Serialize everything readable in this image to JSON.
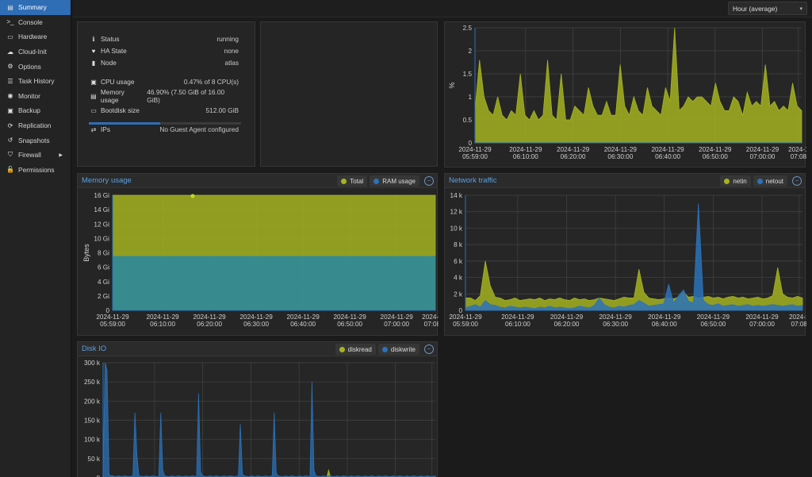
{
  "sidebar": {
    "items": [
      {
        "label": "Summary",
        "icon": "book-icon",
        "glyph": "▤",
        "active": true
      },
      {
        "label": "Console",
        "icon": "terminal-icon",
        "glyph": ">_"
      },
      {
        "label": "Hardware",
        "icon": "monitor-icon",
        "glyph": "▭"
      },
      {
        "label": "Cloud-Init",
        "icon": "cloud-icon",
        "glyph": "☁"
      },
      {
        "label": "Options",
        "icon": "gear-icon",
        "glyph": "⚙"
      },
      {
        "label": "Task History",
        "icon": "list-icon",
        "glyph": "☰"
      },
      {
        "label": "Monitor",
        "icon": "eye-icon",
        "glyph": "◉"
      },
      {
        "label": "Backup",
        "icon": "floppy-icon",
        "glyph": "▣"
      },
      {
        "label": "Replication",
        "icon": "refresh-icon",
        "glyph": "⟳"
      },
      {
        "label": "Snapshots",
        "icon": "history-icon",
        "glyph": "↺"
      },
      {
        "label": "Firewall",
        "icon": "shield-icon",
        "glyph": "⛉",
        "arrow": true
      },
      {
        "label": "Permissions",
        "icon": "unlock-icon",
        "glyph": "🔓"
      }
    ]
  },
  "toolbar": {
    "timeframe": "Hour (average)"
  },
  "status": {
    "rows": [
      {
        "name": "status",
        "icon": "info-icon",
        "glyph": "ℹ",
        "label": "Status",
        "value": "running"
      },
      {
        "name": "ha-state",
        "icon": "heartbeat-icon",
        "glyph": "♥",
        "label": "HA State",
        "value": "none"
      },
      {
        "name": "node",
        "icon": "server-icon",
        "glyph": "▮",
        "label": "Node",
        "value": "atlas"
      },
      {
        "name": "cpu-usage",
        "icon": "cpu-icon",
        "glyph": "▣",
        "label": "CPU usage",
        "value": "0.47% of 8 CPU(s)"
      },
      {
        "name": "memory-usage",
        "icon": "memory-icon",
        "glyph": "▤",
        "label": "Memory usage",
        "value": "46.90% (7.50 GiB of 16.00 GiB)"
      },
      {
        "name": "bootdisk-size",
        "icon": "hdd-icon",
        "glyph": "▭",
        "label": "Bootdisk size",
        "value": "512.00 GiB"
      },
      {
        "name": "ips",
        "icon": "exchange-icon",
        "glyph": "⇄",
        "label": "IPs",
        "value": "No Guest Agent configured"
      }
    ],
    "memory_percent": 46.9
  },
  "colors": {
    "green": "#a5b321",
    "blue": "#2b72b8",
    "teal": "#2e8a9a"
  },
  "x_ticks": [
    "2024-11-29\n05:59:00",
    "2024-11-29\n06:10:00",
    "2024-11-29\n06:20:00",
    "2024-11-29\n06:30:00",
    "2024-11-29\n06:40:00",
    "2024-11-29\n06:50:00",
    "2024-11-29\n07:00:00",
    "2024-1\n07:08"
  ],
  "chart_data": [
    {
      "name": "cpu",
      "type": "area",
      "title": "",
      "ylabel": "%",
      "ylim": [
        0,
        2.5
      ],
      "y_ticks": [
        0,
        0.5,
        1,
        1.5,
        2,
        2.5
      ],
      "series": [
        {
          "name": "CPU usage",
          "color": "#a5b321",
          "values": [
            0.7,
            1.8,
            1.0,
            0.7,
            0.6,
            1.0,
            0.6,
            0.5,
            0.7,
            0.6,
            1.5,
            0.6,
            0.5,
            0.7,
            0.5,
            0.6,
            1.8,
            0.6,
            0.5,
            1.5,
            0.5,
            0.5,
            0.8,
            0.7,
            0.6,
            1.2,
            0.8,
            0.6,
            0.6,
            0.9,
            0.6,
            0.6,
            1.7,
            0.8,
            0.6,
            1.0,
            0.7,
            0.6,
            1.2,
            0.8,
            0.7,
            0.6,
            1.2,
            0.9,
            2.5,
            0.7,
            0.8,
            1.0,
            0.9,
            1.0,
            1.0,
            0.9,
            0.8,
            1.3,
            0.9,
            0.7,
            0.7,
            1.0,
            0.9,
            0.6,
            1.1,
            0.8,
            0.9,
            0.8,
            1.7,
            0.8,
            0.9,
            0.7,
            0.8,
            0.7,
            1.3,
            0.8,
            0.7
          ]
        }
      ]
    },
    {
      "name": "memory",
      "type": "area",
      "title": "Memory usage",
      "ylabel": "Bytes",
      "ylim": [
        0,
        16
      ],
      "y_ticks": [
        0,
        2,
        4,
        6,
        8,
        10,
        12,
        14,
        16
      ],
      "y_labels": [
        "0",
        "2 Gi",
        "4 Gi",
        "6 Gi",
        "8 Gi",
        "10 Gi",
        "12 Gi",
        "14 Gi",
        "16 Gi"
      ],
      "series": [
        {
          "name": "Total",
          "color": "#a5b321",
          "values": [
            16,
            16,
            16,
            16,
            16,
            16,
            16,
            16,
            16,
            16,
            16,
            16,
            16,
            16,
            16,
            16,
            16,
            16,
            16,
            16,
            16,
            16,
            16,
            16,
            16,
            16,
            16,
            16,
            16,
            16,
            16,
            16,
            16,
            16,
            16,
            16,
            16,
            16,
            16,
            16,
            16,
            16,
            16,
            16,
            16,
            16,
            16,
            16,
            16,
            16
          ]
        },
        {
          "name": "RAM usage",
          "color": "#2e8a9a",
          "values": [
            7.5,
            7.5,
            7.5,
            7.5,
            7.5,
            7.5,
            7.5,
            7.5,
            7.5,
            7.5,
            7.5,
            7.5,
            7.5,
            7.5,
            7.5,
            7.5,
            7.5,
            7.5,
            7.5,
            7.5,
            7.5,
            7.5,
            7.5,
            7.5,
            7.5,
            7.5,
            7.5,
            7.5,
            7.5,
            7.5,
            7.5,
            7.5,
            7.5,
            7.5,
            7.5,
            7.5,
            7.5,
            7.5,
            7.5,
            7.5,
            7.5,
            7.5,
            7.5,
            7.5,
            7.5,
            7.5,
            7.5,
            7.5,
            7.5,
            7.5
          ]
        }
      ]
    },
    {
      "name": "network",
      "type": "area",
      "title": "Network traffic",
      "ylabel": "",
      "ylim": [
        0,
        14000
      ],
      "y_ticks": [
        0,
        2000,
        4000,
        6000,
        8000,
        10000,
        12000,
        14000
      ],
      "y_labels": [
        "0",
        "2 k",
        "4 k",
        "6 k",
        "8 k",
        "10 k",
        "12 k",
        "14 k"
      ],
      "series": [
        {
          "name": "netin",
          "color": "#a5b321",
          "values": [
            1500,
            1500,
            1200,
            1800,
            6000,
            3000,
            1600,
            1500,
            1200,
            1300,
            1500,
            1200,
            1300,
            1400,
            1300,
            1500,
            1200,
            1400,
            1300,
            1500,
            1300,
            1200,
            1500,
            1300,
            1400,
            1200,
            1300,
            1500,
            1400,
            1300,
            1200,
            1400,
            1600,
            1500,
            1500,
            5000,
            2200,
            1500,
            1400,
            1300,
            1400,
            1500,
            1400,
            1600,
            2200,
            1600,
            1700,
            1500,
            1600,
            1700,
            1500,
            1600,
            1400,
            1600,
            1700,
            1500,
            1600,
            1400,
            1500,
            1600,
            1400,
            1500,
            1800,
            5200,
            2000,
            1600,
            1500,
            1700,
            1500
          ]
        },
        {
          "name": "netout",
          "color": "#2b72b8",
          "values": [
            300,
            500,
            700,
            400,
            1200,
            700,
            600,
            400,
            300,
            500,
            400,
            300,
            400,
            300,
            200,
            400,
            300,
            500,
            300,
            400,
            300,
            200,
            300,
            500,
            400,
            300,
            600,
            1500,
            700,
            400,
            300,
            500,
            400,
            600,
            700,
            1200,
            900,
            500,
            600,
            700,
            800,
            3200,
            900,
            1800,
            2500,
            1100,
            900,
            13000,
            1200,
            700,
            600,
            800,
            500,
            600,
            700,
            500,
            600,
            700,
            500,
            600,
            500,
            600,
            700,
            600,
            500,
            600,
            700,
            500,
            600
          ]
        }
      ]
    },
    {
      "name": "diskio",
      "type": "area",
      "title": "Disk IO",
      "ylabel": "",
      "ylim": [
        0,
        300000
      ],
      "y_ticks": [
        0,
        50000,
        100000,
        150000,
        200000,
        250000,
        300000
      ],
      "y_labels": [
        "0",
        "50 k",
        "100 k",
        "150 k",
        "200 k",
        "250 k",
        "300 k"
      ],
      "series": [
        {
          "name": "diskread",
          "color": "#a5b321",
          "values": [
            0,
            0,
            0,
            0,
            0,
            0,
            0,
            0,
            0,
            0,
            0,
            0,
            0,
            0,
            0,
            0,
            0,
            0,
            0,
            0,
            0,
            0,
            0,
            0,
            0,
            0,
            0,
            0,
            0,
            0,
            0,
            0,
            0,
            0,
            0,
            0,
            0,
            0,
            0,
            0,
            0,
            0,
            0,
            0,
            0,
            0,
            0,
            0,
            0,
            0,
            0,
            0,
            0,
            0,
            0,
            0,
            0,
            0,
            0,
            0,
            0,
            0,
            0,
            0,
            0,
            0,
            0,
            0,
            0,
            0,
            0,
            0,
            0,
            0,
            0,
            0,
            0,
            0,
            0,
            0,
            0,
            0,
            0,
            0,
            0,
            0,
            0,
            0,
            0,
            0,
            0,
            0,
            0,
            0,
            0,
            0,
            0,
            0,
            0,
            0,
            0,
            0,
            0,
            0,
            0,
            0,
            0,
            0,
            0,
            0,
            0,
            0,
            20000,
            0,
            0,
            0,
            0,
            0,
            0,
            0,
            0,
            0,
            0,
            0,
            0,
            0,
            0,
            0,
            0,
            0,
            0,
            0,
            0,
            0,
            0,
            0,
            0,
            0,
            0,
            0,
            0,
            0,
            0,
            0,
            0,
            0,
            0,
            0,
            0,
            0,
            0,
            0,
            0,
            0,
            0,
            0,
            0,
            0,
            0,
            0,
            0,
            0,
            0,
            0,
            0,
            0
          ]
        },
        {
          "name": "diskwrite",
          "color": "#2b72b8",
          "values": [
            5000,
            300000,
            280000,
            8000,
            5000,
            5000,
            3000,
            4000,
            5000,
            3000,
            4000,
            5000,
            4000,
            3000,
            4000,
            5000,
            170000,
            60000,
            5000,
            4000,
            3000,
            4000,
            5000,
            3000,
            4000,
            5000,
            4000,
            3000,
            4000,
            170000,
            20000,
            5000,
            4000,
            3000,
            4000,
            5000,
            3000,
            4000,
            5000,
            4000,
            3000,
            4000,
            5000,
            3000,
            4000,
            5000,
            4000,
            3000,
            220000,
            15000,
            5000,
            4000,
            3000,
            4000,
            5000,
            3000,
            4000,
            5000,
            4000,
            3000,
            4000,
            5000,
            3000,
            4000,
            5000,
            4000,
            3000,
            4000,
            5000,
            140000,
            10000,
            5000,
            4000,
            3000,
            4000,
            5000,
            3000,
            4000,
            5000,
            4000,
            3000,
            4000,
            5000,
            3000,
            4000,
            5000,
            170000,
            12000,
            5000,
            4000,
            3000,
            4000,
            5000,
            3000,
            4000,
            5000,
            4000,
            3000,
            4000,
            5000,
            3000,
            4000,
            5000,
            4000,
            3000,
            250000,
            20000,
            5000,
            4000,
            3000,
            4000,
            5000,
            3000,
            4000,
            5000,
            4000,
            3000,
            4000,
            5000,
            3000,
            4000,
            5000,
            4000,
            3000,
            4000,
            5000,
            3000,
            4000,
            5000,
            4000,
            3000,
            4000,
            5000,
            3000,
            4000,
            5000,
            4000,
            3000,
            4000,
            5000,
            3000,
            4000,
            5000,
            4000,
            3000,
            4000,
            5000,
            3000,
            4000,
            5000,
            4000,
            3000,
            4000,
            5000,
            3000,
            4000,
            5000,
            4000,
            3000,
            4000,
            5000,
            3000,
            4000,
            5000,
            4000,
            3000,
            4000,
            5000
          ]
        }
      ]
    }
  ]
}
